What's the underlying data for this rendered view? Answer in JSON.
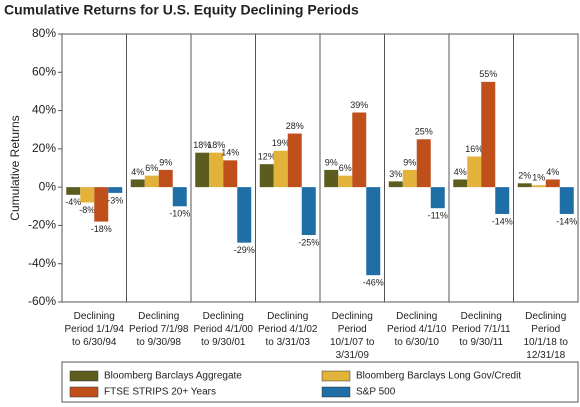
{
  "chart_data": {
    "type": "bar",
    "title": "Cumulative Returns for U.S. Equity Declining Periods",
    "y_label": "Cumulative Returns",
    "categories": [
      [
        "Declining",
        "Period 1/1/94",
        "to 6/30/94"
      ],
      [
        "Declining",
        "Period 7/1/98",
        "to 9/30/98"
      ],
      [
        "Declining",
        "Period 4/1/00",
        "to 9/30/01"
      ],
      [
        "Declining",
        "Period 4/1/02",
        "to 3/31/03"
      ],
      [
        "Declining",
        "Period",
        "10/1/07 to",
        "3/31/09"
      ],
      [
        "Declining",
        "Period 4/1/10",
        "to 6/30/10"
      ],
      [
        "Declining",
        "Period 7/1/11",
        "to 9/30/11"
      ],
      [
        "Declining",
        "Period",
        "10/1/18 to",
        "12/31/18"
      ]
    ],
    "series": [
      {
        "name": "Bloomberg Barclays Aggregate",
        "color": "#5c5c1f",
        "values": [
          -4,
          4,
          18,
          12,
          9,
          3,
          4,
          2
        ],
        "value_labels": [
          "-4%",
          "4%",
          "18%",
          "12%",
          "9%",
          "3%",
          "4%",
          "2%"
        ]
      },
      {
        "name": "Bloomberg Barclays Long Gov/Credit",
        "color": "#e3b23a",
        "values": [
          -8,
          6,
          18,
          19,
          6,
          9,
          16,
          1
        ],
        "value_labels": [
          "-8%",
          "6%",
          "18%",
          "19%",
          "6%",
          "9%",
          "16%",
          "1%"
        ]
      },
      {
        "name": "FTSE STRIPS 20+ Years",
        "color": "#c0501b",
        "values": [
          -18,
          9,
          14,
          28,
          39,
          25,
          55,
          4
        ],
        "value_labels": [
          "-18%",
          "9%",
          "14%",
          "28%",
          "39%",
          "25%",
          "55%",
          "4%"
        ]
      },
      {
        "name": "S&P 500",
        "color": "#1f6ea6",
        "values": [
          -3,
          -10,
          -29,
          -25,
          -46,
          -11,
          -14,
          -14
        ],
        "value_labels": [
          "-3%",
          "-10%",
          "-29%",
          "-25%",
          "-46%",
          "-11%",
          "-14%",
          "-14%"
        ]
      }
    ],
    "ylim": [
      -60,
      80
    ],
    "yticks": [
      {
        "value": -60,
        "label": "-60%"
      },
      {
        "value": -40,
        "label": "-40%"
      },
      {
        "value": -20,
        "label": "-20%"
      },
      {
        "value": 0,
        "label": "0%"
      },
      {
        "value": 20,
        "label": "20%"
      },
      {
        "value": 40,
        "label": "40%"
      },
      {
        "value": 60,
        "label": "60%"
      },
      {
        "value": 80,
        "label": "80%"
      }
    ],
    "grid": false
  }
}
